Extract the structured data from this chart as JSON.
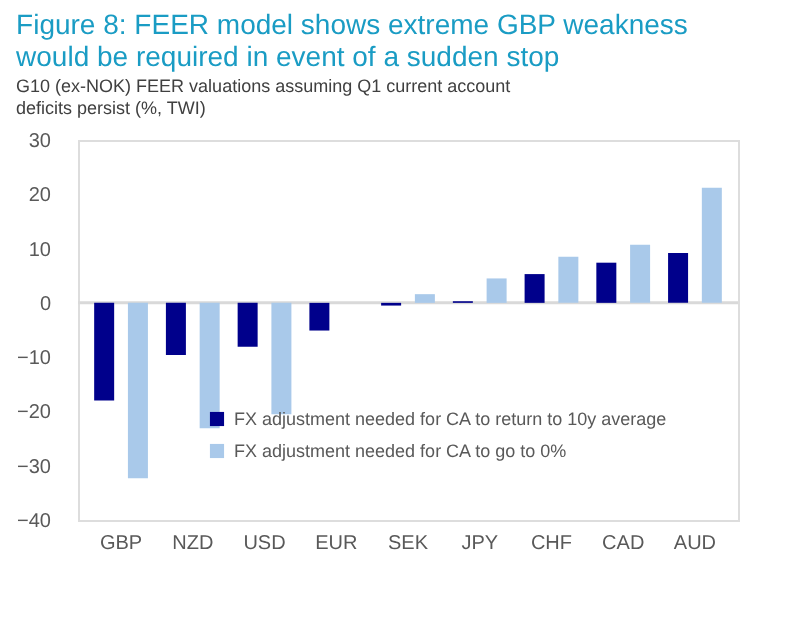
{
  "chart_data": {
    "type": "bar",
    "title": "Figure 8: FEER model shows extreme GBP weakness would be required in event of a sudden stop",
    "subtitle": "G10 (ex-NOK) FEER valuations assuming Q1 current account deficits persist (%, TWI)",
    "categories": [
      "GBP",
      "NZD",
      "USD",
      "EUR",
      "SEK",
      "JPY",
      "CHF",
      "CAD",
      "AUD"
    ],
    "series": [
      {
        "name": "FX adjustment needed for CA  to return to 10y average",
        "color": "#00008b",
        "values": [
          -18.0,
          -9.6,
          -8.1,
          -5.1,
          -0.5,
          0.3,
          5.3,
          7.4,
          9.2
        ]
      },
      {
        "name": "FX adjustment needed for CA to go to 0%",
        "color": "#a9c9ea",
        "values": [
          -32.3,
          -23.1,
          -20.5,
          0,
          1.6,
          4.5,
          8.5,
          10.7,
          21.2
        ]
      }
    ],
    "ylim": [
      -40,
      30
    ],
    "yticks": [
      -40,
      -30,
      -20,
      -10,
      0,
      10,
      20,
      30
    ],
    "ref_lines": [
      {
        "axis": "y",
        "value": 0,
        "color": "#d9d9d9"
      }
    ],
    "grid": false,
    "legend": "bottom"
  }
}
